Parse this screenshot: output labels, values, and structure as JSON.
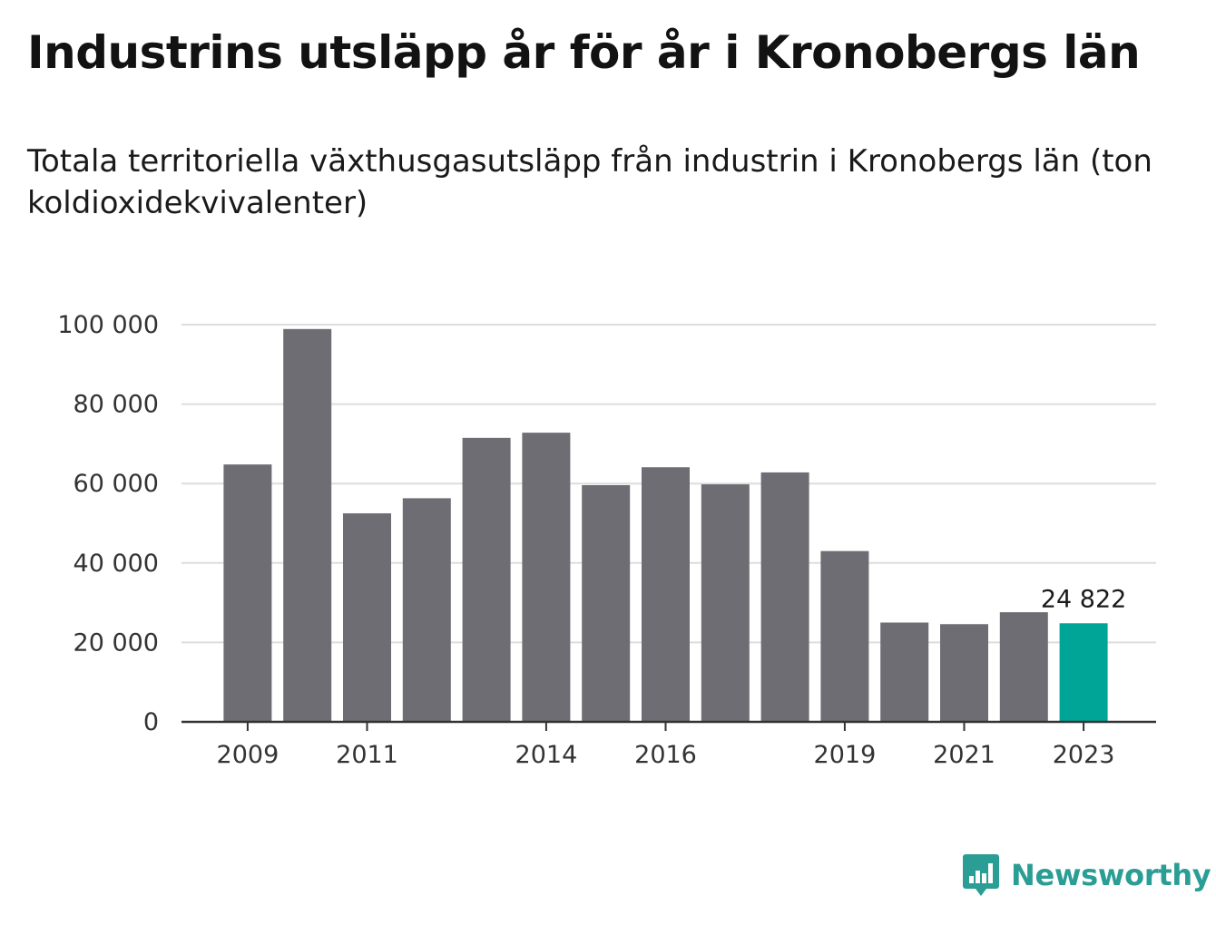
{
  "title": "Industrins utsläpp år för år i Kronobergs län",
  "subtitle": "Totala territoriella växthusgasutsläpp från industrin i Kronobergs län (ton koldioxidekvivalenter)",
  "brand": {
    "name": "Newsworthy",
    "icon": "newsworthy-logo-icon",
    "color": "#2a9d94"
  },
  "colors": {
    "bar": "#6d6d73",
    "highlight": "#00a598",
    "grid": "#dddddd",
    "axis": "#333333"
  },
  "chart_data": {
    "type": "bar",
    "categories": [
      "2009",
      "2010",
      "2011",
      "2012",
      "2013",
      "2014",
      "2015",
      "2016",
      "2017",
      "2018",
      "2019",
      "2020",
      "2021",
      "2022",
      "2023"
    ],
    "values": [
      64800,
      98900,
      52500,
      56300,
      71500,
      72800,
      59600,
      64100,
      59800,
      62800,
      43000,
      25000,
      24600,
      27600,
      24822
    ],
    "highlight_index": 14,
    "value_label": "24 822",
    "x_tick_labels": [
      "2009",
      "2011",
      "2014",
      "2016",
      "2019",
      "2021",
      "2023"
    ],
    "y_ticks": [
      0,
      20000,
      40000,
      60000,
      80000,
      100000
    ],
    "y_tick_labels": [
      "0",
      "20 000",
      "40 000",
      "60 000",
      "80 000",
      "100 000"
    ],
    "ylim": [
      0,
      100000
    ],
    "grid": true,
    "legend": "none"
  }
}
